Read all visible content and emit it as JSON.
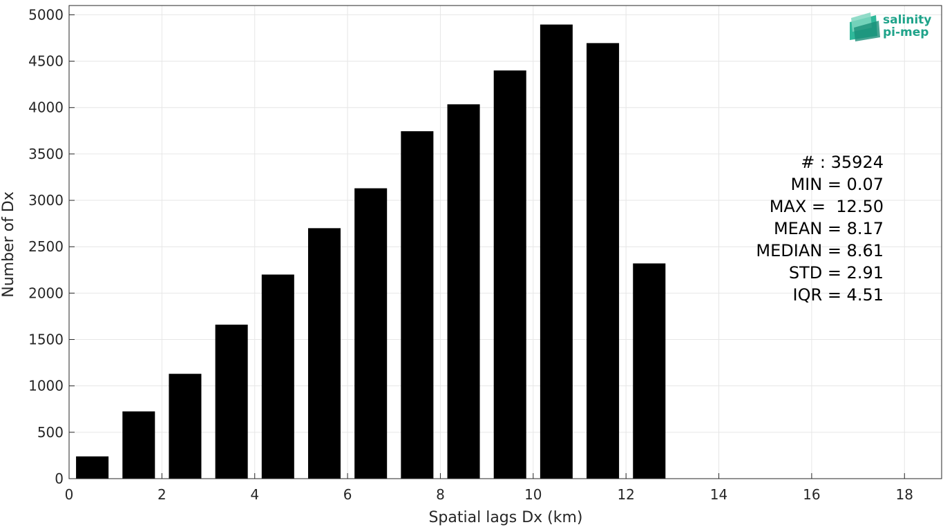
{
  "chart_data": {
    "type": "bar",
    "x": [
      0.5,
      1.5,
      2.5,
      3.5,
      4.5,
      5.5,
      6.5,
      7.5,
      8.5,
      9.5,
      10.5,
      11.5,
      12.5
    ],
    "values": [
      240,
      725,
      1130,
      1660,
      2200,
      2700,
      3130,
      3745,
      4035,
      4400,
      4895,
      4695,
      2320
    ],
    "bar_width": 0.7,
    "xlabel": "Spatial lags Dx (km)",
    "ylabel": "Number of Dx",
    "xlim": [
      0,
      18.8
    ],
    "ylim": [
      0,
      5100
    ],
    "xticks": [
      0,
      2,
      4,
      6,
      8,
      10,
      12,
      14,
      16,
      18
    ],
    "yticks": [
      0,
      500,
      1000,
      1500,
      2000,
      2500,
      3000,
      3500,
      4000,
      4500,
      5000
    ],
    "grid": true,
    "bar_color": "#000000",
    "stats": [
      "# : 35924",
      "MIN = 0.07",
      "MAX =  12.50",
      "MEAN = 8.17",
      "MEDIAN = 8.61",
      "STD = 2.91",
      "IQR = 4.51"
    ]
  },
  "logo": {
    "line1": "salinity",
    "line2": "pi-mep",
    "color": "#1fa38a",
    "icon": "salinity-pimep-logo-icon"
  }
}
